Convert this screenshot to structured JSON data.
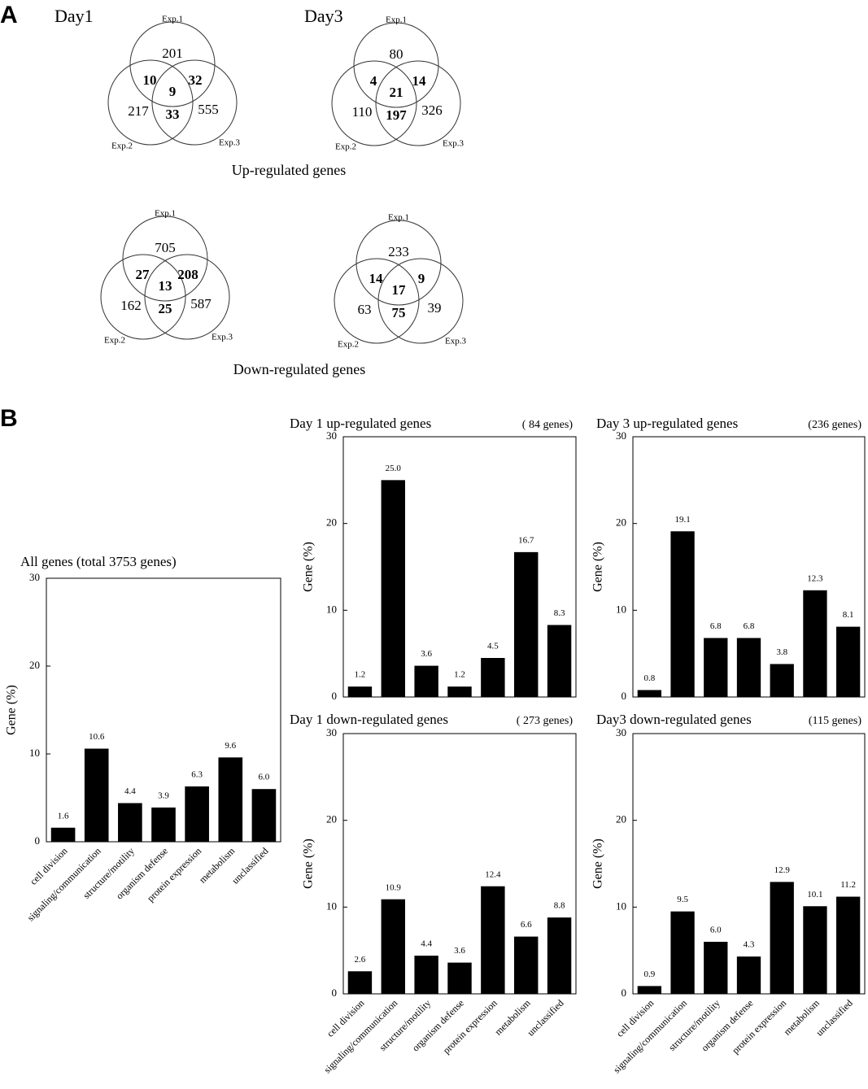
{
  "panel_labels": [
    "A",
    "B"
  ],
  "venn": {
    "days": [
      "Day1",
      "Day3"
    ],
    "groups": [
      "Up-regulated genes",
      "Down-regulated genes"
    ],
    "diagrams": [
      {
        "sets": [
          "Exp.1",
          "Exp.2",
          "Exp.3"
        ],
        "only1": 201,
        "only2": 217,
        "only3": 555,
        "e12": 10,
        "e13": 32,
        "e23": 33,
        "e123": 9
      },
      {
        "sets": [
          "Exp.1",
          "Exp.2",
          "Exp.3"
        ],
        "only1": 80,
        "only2": 110,
        "only3": 326,
        "e12": 4,
        "e13": 14,
        "e23": 197,
        "e123": 21
      },
      {
        "sets": [
          "Exp.1",
          "Exp.2",
          "Exp.3"
        ],
        "only1": 705,
        "only2": 162,
        "only3": 587,
        "e12": 27,
        "e13": 208,
        "e23": 25,
        "e123": 13
      },
      {
        "sets": [
          "Exp.1",
          "Exp.2",
          "Exp.3"
        ],
        "only1": 233,
        "only2": 63,
        "only3": 39,
        "e12": 14,
        "e13": 9,
        "e23": 75,
        "e123": 17
      }
    ]
  },
  "chart_data": [
    {
      "type": "bar",
      "title": "All genes (total 3753 genes)",
      "y_label": "Gene (%)",
      "categories": [
        "cell division",
        "signaling/communication",
        "structure/motility",
        "organism defense",
        "protein expression",
        "metabolism",
        "unclassified"
      ],
      "values": [
        1.6,
        10.6,
        4.4,
        3.9,
        6.3,
        9.6,
        6.0
      ],
      "value_labels": [
        "1.6",
        "10.6",
        "4.4",
        "3.9",
        "6.3",
        "9.6",
        "6.0"
      ],
      "color": "#000000",
      "ylim": [
        0,
        30
      ],
      "yticks": [
        0,
        10,
        20,
        30
      ],
      "grid": false
    },
    {
      "type": "bar",
      "title": "Day 1 up-regulated genes",
      "subtitle": "( 84 genes)",
      "y_label": "Gene (%)",
      "values": [
        1.2,
        25.0,
        3.6,
        1.2,
        4.5,
        16.7,
        8.3
      ],
      "value_labels": [
        "1.2",
        "25.0",
        "3.6",
        "1.2",
        "4.5",
        "16.7",
        "8.3"
      ],
      "color": "#000000",
      "ylim": [
        0,
        30
      ],
      "yticks": [
        0,
        10,
        20,
        30
      ],
      "grid": false
    },
    {
      "type": "bar",
      "title": "Day 3 up-regulated genes",
      "subtitle": "(236 genes)",
      "y_label": "Gene (%)",
      "values": [
        0.8,
        19.1,
        6.8,
        6.8,
        3.8,
        12.3,
        8.1
      ],
      "value_labels": [
        "0.8",
        "19.1",
        "6.8",
        "6.8",
        "3.8",
        "12.3",
        "8.1"
      ],
      "color": "#000000",
      "ylim": [
        0,
        30
      ],
      "yticks": [
        0,
        10,
        20,
        30
      ],
      "grid": false
    },
    {
      "type": "bar",
      "title": "Day 1 down-regulated genes",
      "subtitle": "( 273 genes)",
      "y_label": "Gene (%)",
      "categories": [
        "cell division",
        "signaling/communication",
        "structure/motility",
        "organism defense",
        "protein expression",
        "metabolism",
        "unclassified"
      ],
      "values": [
        2.6,
        10.9,
        4.4,
        3.6,
        12.4,
        6.6,
        8.8
      ],
      "value_labels": [
        "2.6",
        "10.9",
        "4.4",
        "3.6",
        "12.4",
        "6.6",
        "8.8"
      ],
      "color": "#000000",
      "ylim": [
        0,
        30
      ],
      "yticks": [
        0,
        10,
        20,
        30
      ],
      "grid": false
    },
    {
      "type": "bar",
      "title": "Day3 down-regulated genes",
      "subtitle": "(115 genes)",
      "y_label": "Gene (%)",
      "categories": [
        "cell division",
        "signaling/communication",
        "structure/motility",
        "organism defense",
        "protein expression",
        "metabolism",
        "unclassified"
      ],
      "values": [
        0.9,
        9.5,
        6.0,
        4.3,
        12.9,
        10.1,
        11.2
      ],
      "value_labels": [
        "0.9",
        "9.5",
        "6.0",
        "4.3",
        "12.9",
        "10.1",
        "11.2"
      ],
      "color": "#000000",
      "ylim": [
        0,
        30
      ],
      "yticks": [
        0,
        10,
        20,
        30
      ],
      "grid": false
    }
  ]
}
